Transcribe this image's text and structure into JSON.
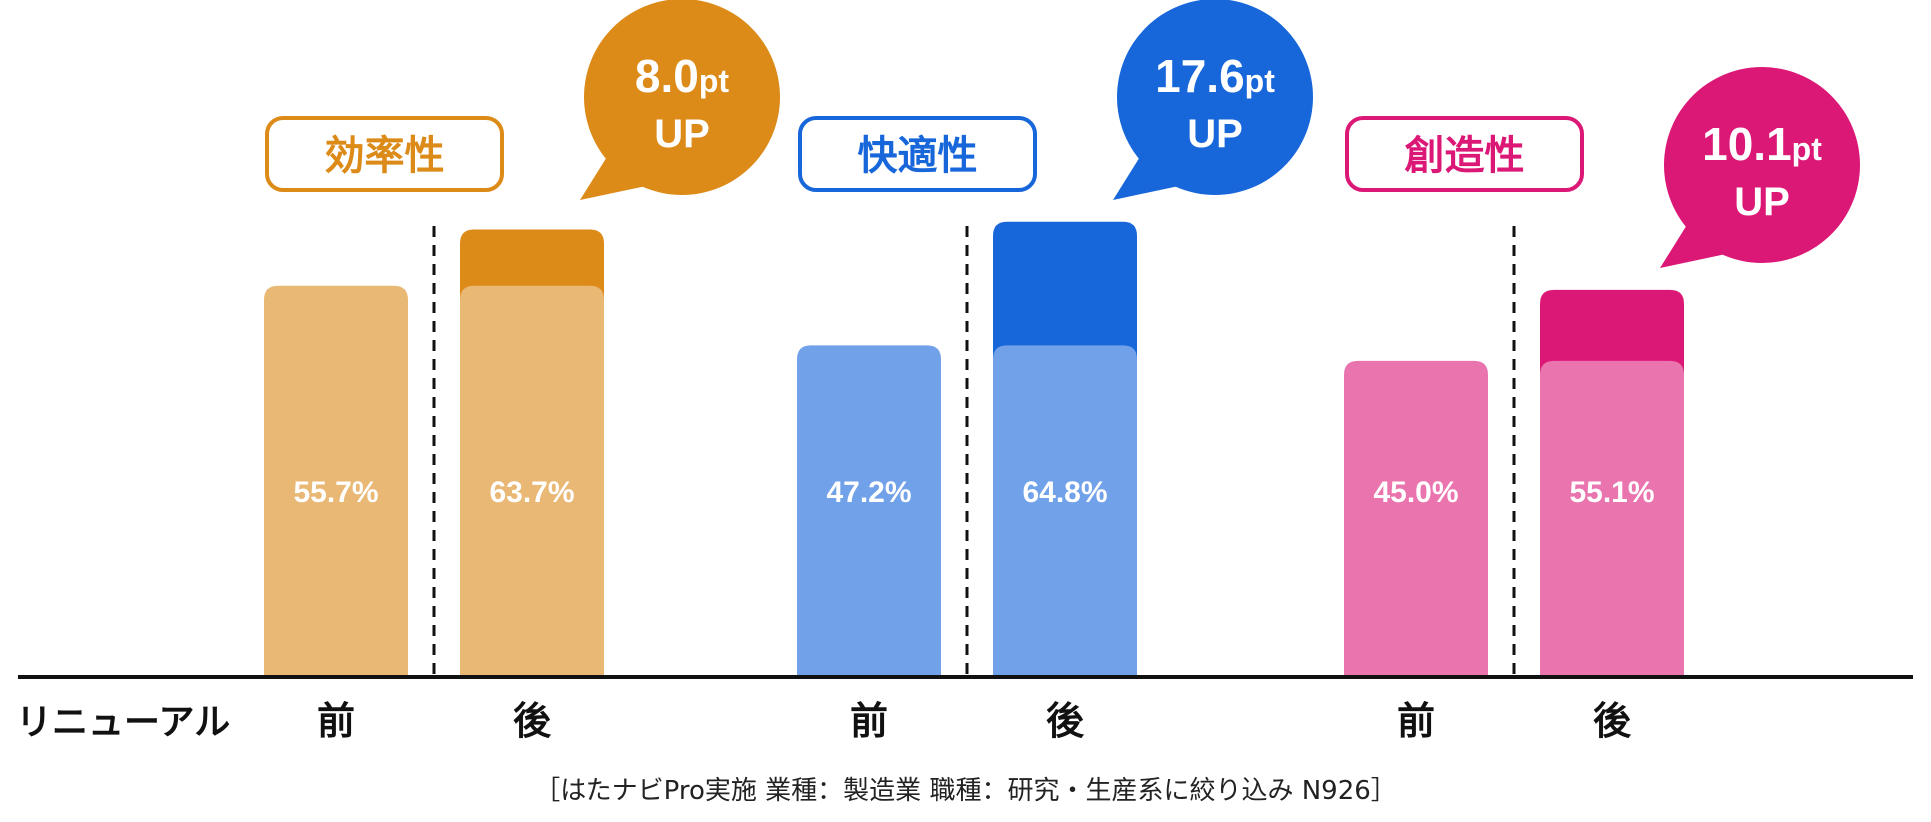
{
  "chart_data": {
    "type": "bar",
    "row_label": "リニューアル",
    "categories": [
      "前",
      "後"
    ],
    "ylim": [
      0,
      100
    ],
    "groups": [
      {
        "name": "効率性",
        "values": [
          55.7,
          63.7
        ],
        "labels": [
          "55.7%",
          "63.7%"
        ],
        "delta_value": "8.0",
        "delta_unit": "pt",
        "delta_suffix": "UP",
        "colors": {
          "main": "#DC8A18",
          "light": "#E8B874"
        }
      },
      {
        "name": "快適性",
        "values": [
          47.2,
          64.8
        ],
        "labels": [
          "47.2%",
          "64.8%"
        ],
        "delta_value": "17.6",
        "delta_unit": "pt",
        "delta_suffix": "UP",
        "colors": {
          "main": "#1767DA",
          "light": "#71A1E8"
        }
      },
      {
        "name": "創造性",
        "values": [
          45.0,
          55.1
        ],
        "labels": [
          "45.0%",
          "55.1%"
        ],
        "delta_value": "10.1",
        "delta_unit": "pt",
        "delta_suffix": "UP",
        "colors": {
          "main": "#DC1877",
          "light": "#EA74AE"
        }
      }
    ],
    "footnote": "［はたナビPro実施 業種：製造業 職種：研究・生産系に絞り込み N926］"
  }
}
